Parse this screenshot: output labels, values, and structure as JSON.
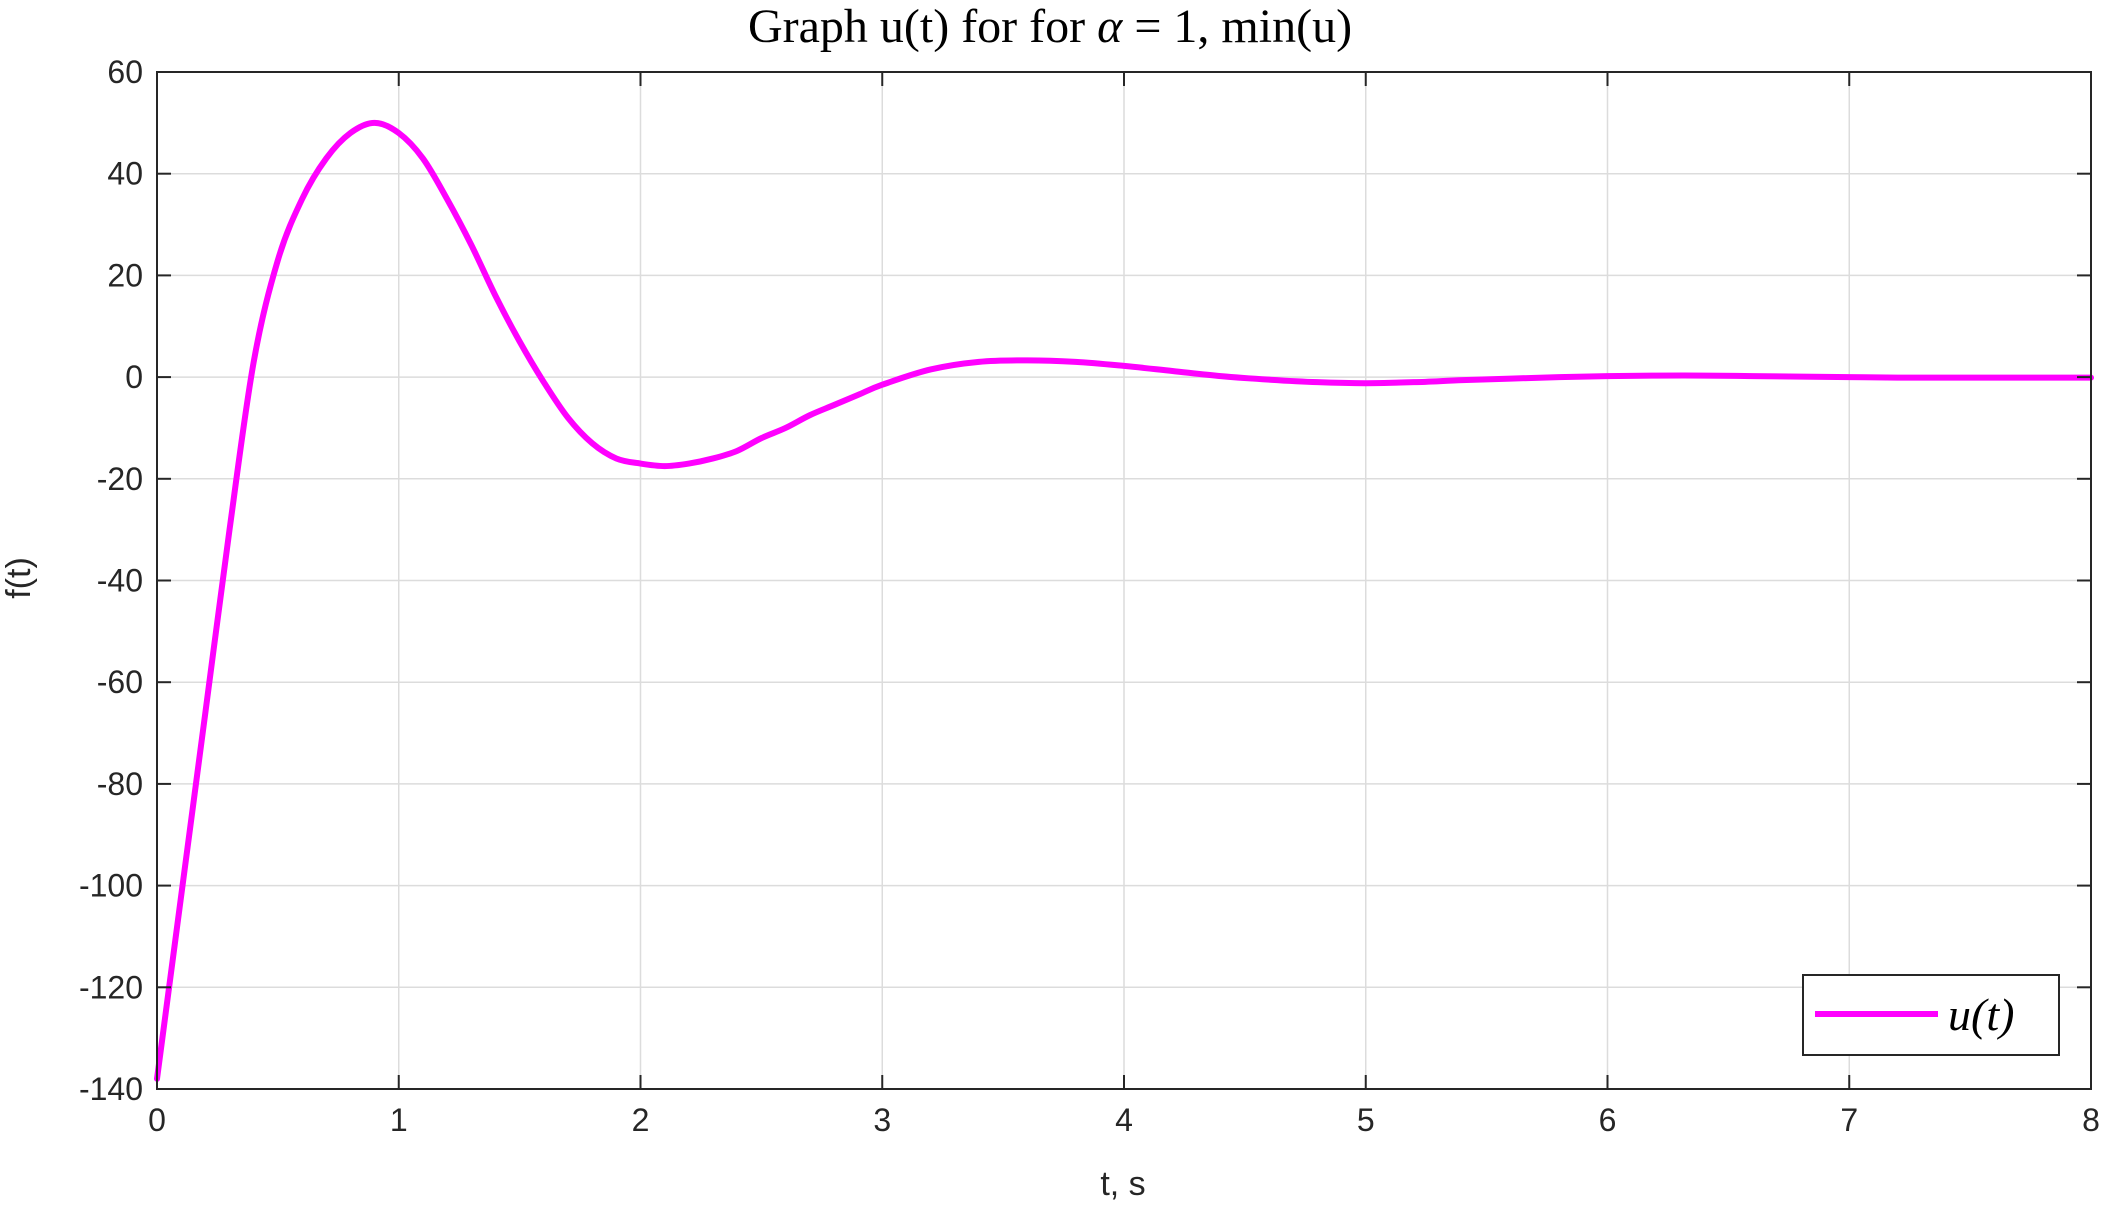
{
  "chart_data": {
    "type": "line",
    "title": {
      "prefix": "Graph u(t) for for ",
      "symbol": "α",
      "suffix": " = 1, min(u)"
    },
    "xlabel": "t, s",
    "ylabel": "f(t)",
    "xlim": [
      0,
      8
    ],
    "ylim": [
      -140,
      60
    ],
    "xticks": [
      0,
      1,
      2,
      3,
      4,
      5,
      6,
      7,
      8
    ],
    "yticks": [
      60,
      40,
      20,
      0,
      -20,
      -40,
      -60,
      -80,
      -100,
      -120,
      -140
    ],
    "grid": true,
    "legend": {
      "position": "bottom-right",
      "label": "u(t)"
    },
    "series": [
      {
        "name": "u(t)",
        "color": "#ff00ff",
        "x": [
          0,
          0.1,
          0.2,
          0.3,
          0.4,
          0.5,
          0.6,
          0.7,
          0.8,
          0.9,
          1.0,
          1.1,
          1.2,
          1.3,
          1.4,
          1.5,
          1.6,
          1.7,
          1.8,
          1.9,
          2.0,
          2.1,
          2.2,
          2.3,
          2.4,
          2.5,
          2.6,
          2.7,
          2.8,
          2.9,
          3.0,
          3.2,
          3.4,
          3.6,
          3.8,
          4.0,
          4.2,
          4.4,
          4.6,
          4.8,
          5.0,
          5.2,
          5.4,
          5.6,
          5.8,
          6.0,
          6.2,
          6.4,
          6.6,
          6.8,
          7.0,
          7.2,
          7.4,
          7.6,
          7.8,
          8.0
        ],
        "y": [
          -138,
          -102,
          -66,
          -30,
          3,
          23,
          35,
          43,
          48,
          50,
          48,
          43,
          35,
          26,
          16,
          7,
          -1,
          -8,
          -13,
          -16,
          -17,
          -17.5,
          -17,
          -16,
          -14.5,
          -12,
          -10,
          -7.5,
          -5.5,
          -3.5,
          -1.5,
          1.5,
          3,
          3.3,
          3,
          2.2,
          1.2,
          0.2,
          -0.5,
          -1,
          -1.2,
          -1,
          -0.6,
          -0.3,
          0,
          0.2,
          0.3,
          0.3,
          0.2,
          0.1,
          0,
          -0.1,
          -0.1,
          -0.1,
          -0.1,
          -0.1
        ]
      }
    ]
  }
}
